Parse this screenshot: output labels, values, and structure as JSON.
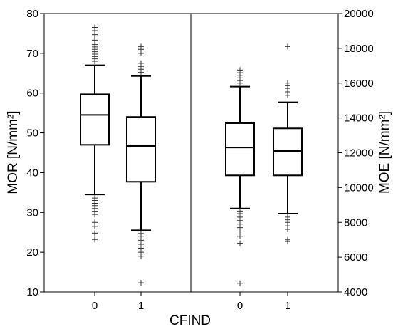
{
  "chart_data": [
    {
      "type": "box",
      "panel": "left",
      "axis_side": "left",
      "ylabel": "MOR [N/mm²]",
      "ylim": [
        10,
        80
      ],
      "yticks": [
        10,
        20,
        30,
        40,
        50,
        60,
        70,
        80
      ],
      "categories": [
        "0",
        "1"
      ],
      "boxes": [
        {
          "category": "0",
          "whisker_low": 34.5,
          "q1": 47,
          "median": 54.5,
          "q3": 59.7,
          "whisker_high": 67,
          "outliers": [
            23.2,
            24.8,
            26.5,
            27.5,
            29.5,
            30.3,
            31,
            31.7,
            32.3,
            33,
            33.6,
            68,
            68.6,
            69.2,
            69.8,
            70.4,
            71,
            71.6,
            72.2,
            73.3,
            74.7,
            75.7,
            76.5
          ]
        },
        {
          "category": "1",
          "whisker_low": 25.5,
          "q1": 37.7,
          "median": 46.7,
          "q3": 54,
          "whisker_high": 64.3,
          "outliers": [
            12.3,
            19,
            20,
            21,
            22,
            23,
            24,
            24.7,
            65.2,
            66,
            66.7,
            67.5,
            70,
            71,
            71.7
          ]
        }
      ]
    },
    {
      "type": "box",
      "panel": "right",
      "axis_side": "right",
      "ylabel": "MOE [N/mm²]",
      "ylim": [
        4000,
        20000
      ],
      "yticks": [
        4000,
        6000,
        8000,
        10000,
        12000,
        14000,
        16000,
        18000,
        20000
      ],
      "categories": [
        "0",
        "1"
      ],
      "boxes": [
        {
          "category": "0",
          "whisker_low": 8800,
          "q1": 10700,
          "median": 12300,
          "q3": 13700,
          "whisker_high": 15800,
          "outliers": [
            4500,
            6800,
            7200,
            7500,
            7700,
            7900,
            8100,
            8300,
            8500,
            8650,
            16000,
            16150,
            16300,
            16450,
            16600,
            16750
          ]
        },
        {
          "category": "1",
          "whisker_low": 8500,
          "q1": 10700,
          "median": 12100,
          "q3": 13400,
          "whisker_high": 14900,
          "outliers": [
            6900,
            7000,
            7600,
            7800,
            8000,
            8150,
            8300,
            15300,
            15500,
            15700,
            15850,
            16000,
            18100
          ]
        }
      ]
    }
  ],
  "xlabel": "CFIND"
}
